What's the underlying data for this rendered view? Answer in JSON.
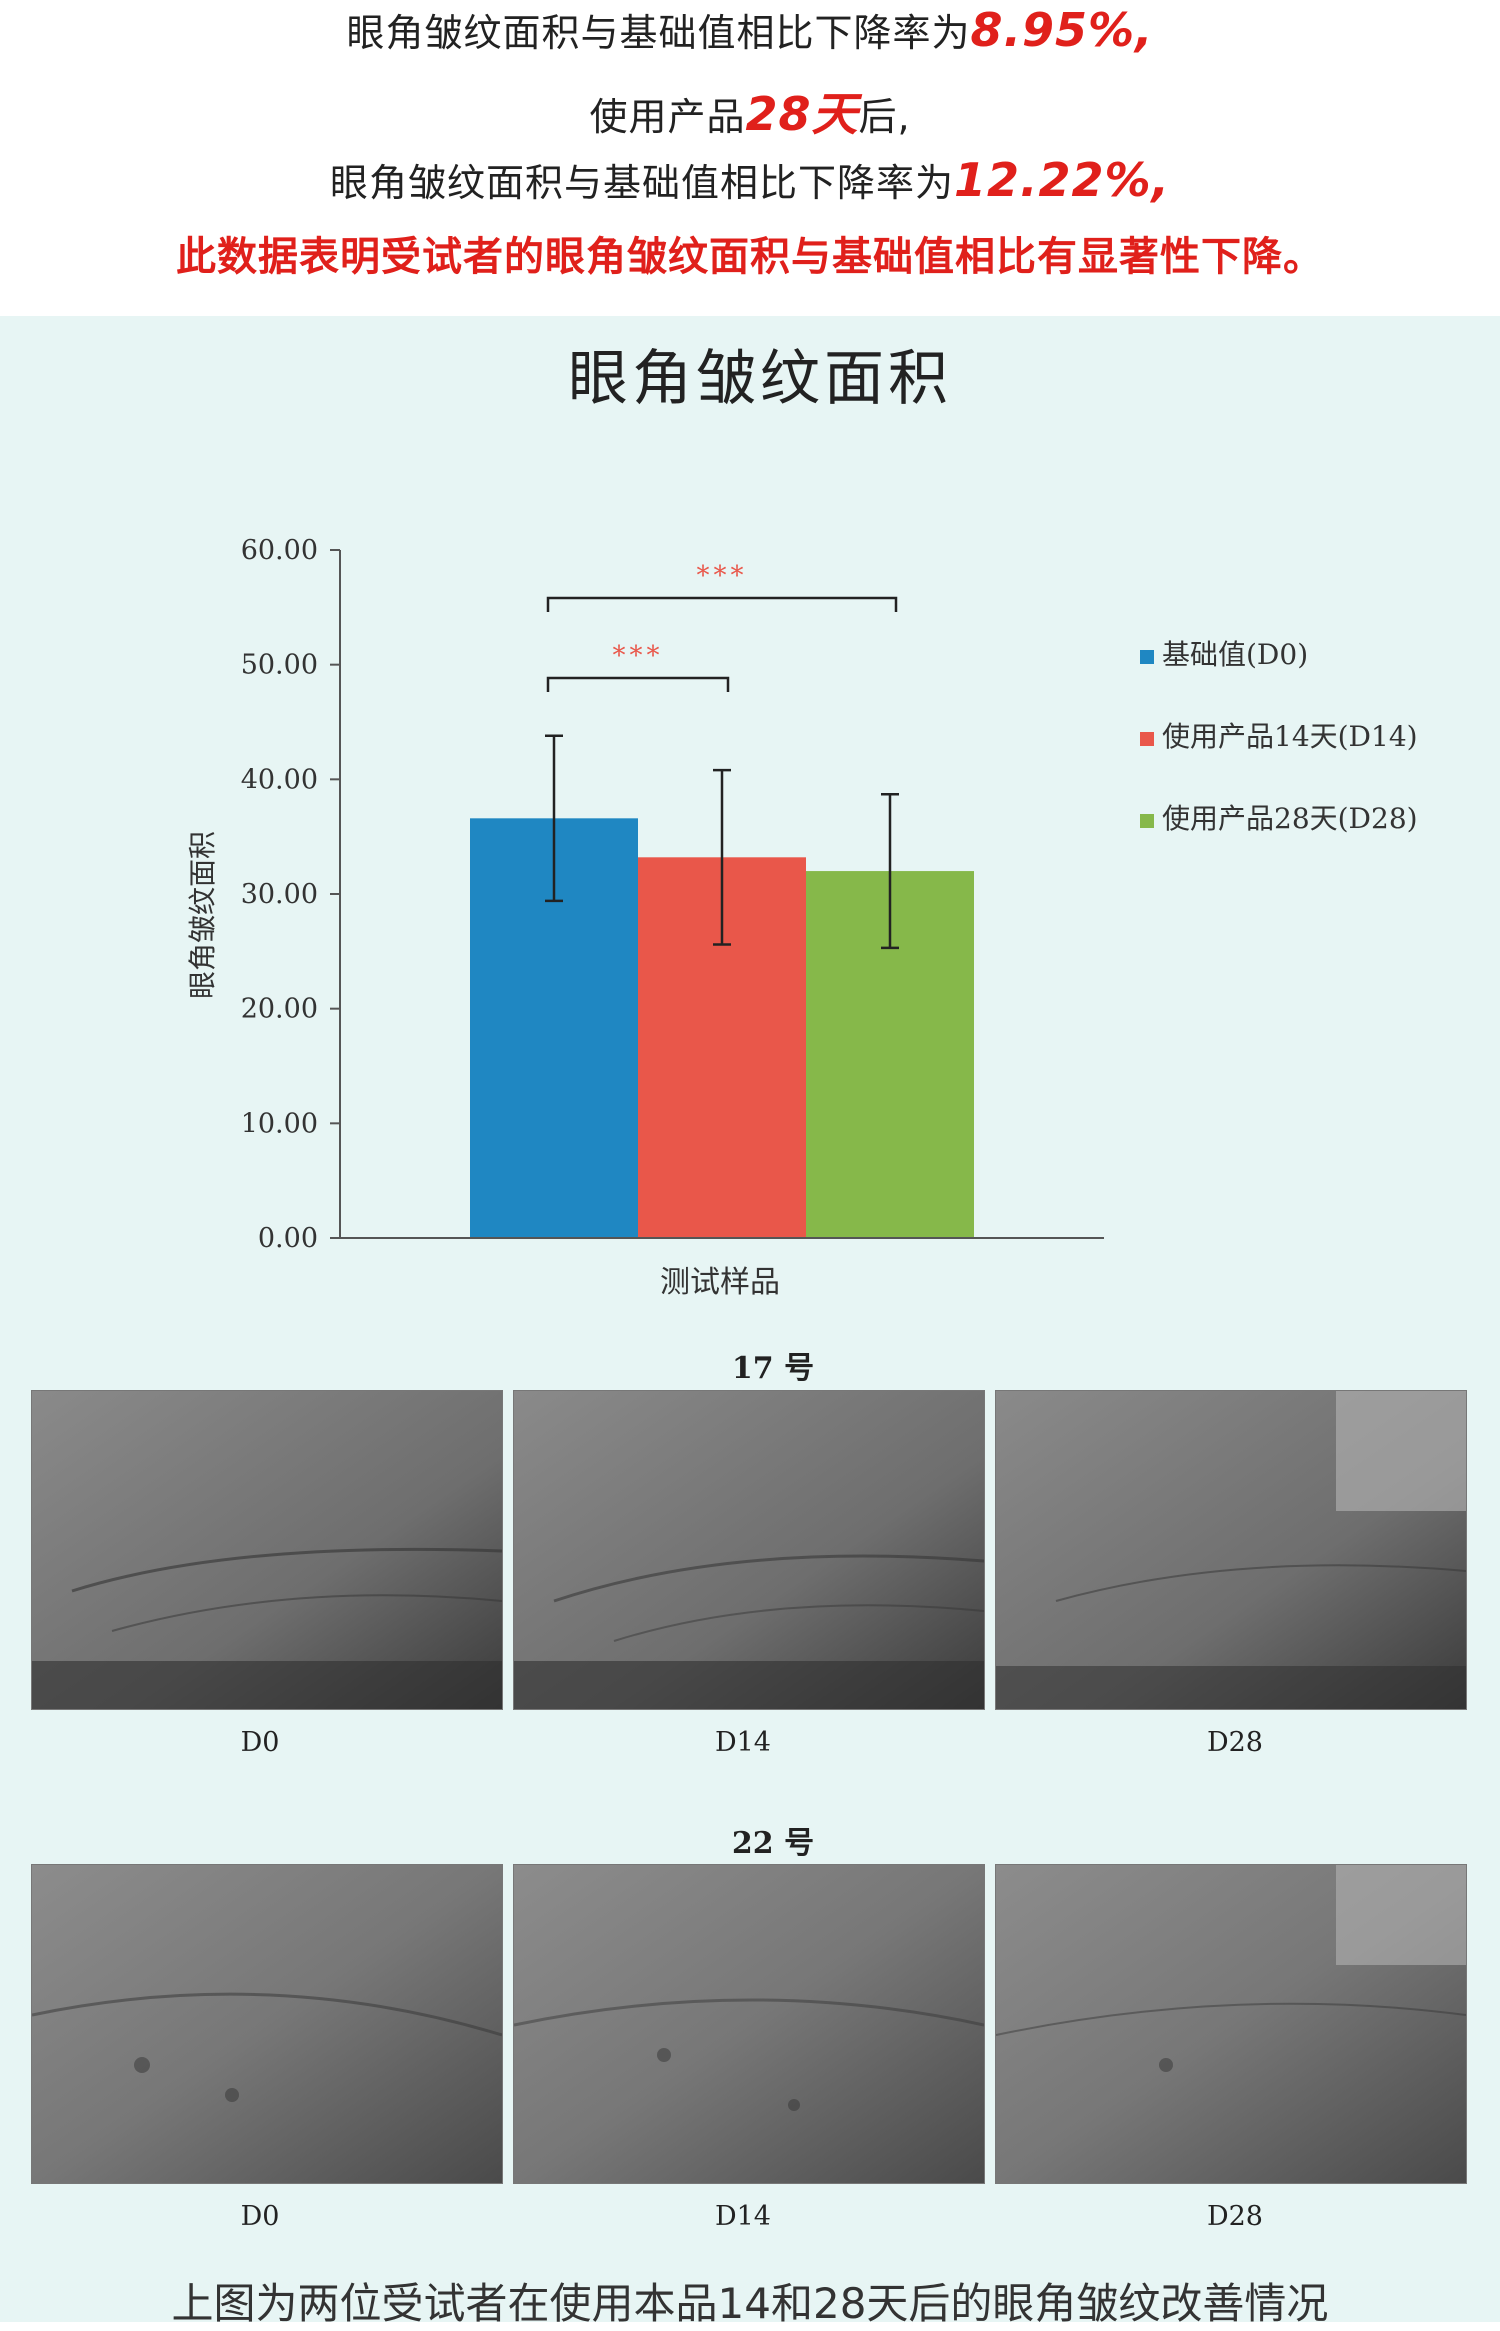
{
  "header": {
    "line1_prefix": "眼角皱纹面积与基础值相比下降率为",
    "line1_value": "8.95%,",
    "line2_prefix": "使用产品",
    "line2_value": "28天",
    "line2_suffix": "后,",
    "line3_prefix": "眼角皱纹面积与基础值相比下降率为",
    "line3_value": "12.22%,",
    "conclusion": "此数据表明受试者的眼角皱纹面积与基础值相比有显著性下降。"
  },
  "chart_data": {
    "type": "bar",
    "title": "眼角皱纹面积",
    "xlabel": "测试样品",
    "ylabel": "眼角皱纹面积",
    "ylim": [
      0,
      60
    ],
    "yticks": [
      "0.00",
      "10.00",
      "20.00",
      "30.00",
      "40.00",
      "50.00",
      "60.00"
    ],
    "series": [
      {
        "name": "基础值(D0)",
        "value": 36.6,
        "error": 7.2,
        "color": "#1f87c2"
      },
      {
        "name": "使用产品14天(D14)",
        "value": 33.2,
        "error": 7.6,
        "color": "#e9574a"
      },
      {
        "name": "使用产品28天(D28)",
        "value": 32.0,
        "error": 6.7,
        "color": "#86b84a"
      }
    ],
    "significance": [
      {
        "label": "***",
        "from": "基础值(D0)",
        "to": "使用产品14天(D14)"
      },
      {
        "label": "***",
        "from": "基础值(D0)",
        "to": "使用产品28天(D28)"
      }
    ],
    "legend_position": "right"
  },
  "photos": {
    "groups": [
      {
        "subject": "17 号",
        "labels": [
          "D0",
          "D14",
          "D28"
        ]
      },
      {
        "subject": "22 号",
        "labels": [
          "D0",
          "D14",
          "D28"
        ]
      }
    ]
  },
  "footer": {
    "text": "上图为两位受试者在使用本品14和28天后的眼角皱纹改善情况"
  },
  "colors": {
    "accent_red": "#e0201b",
    "panel_bg": "#e7f5f4"
  }
}
